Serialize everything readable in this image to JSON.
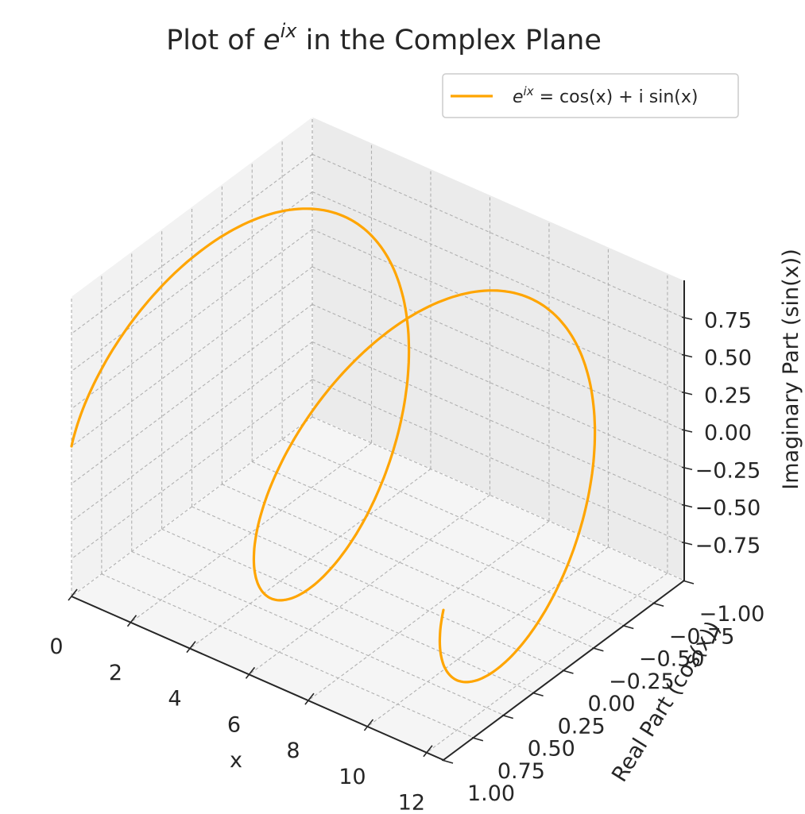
{
  "chart_data": {
    "type": "line",
    "projection": "3d",
    "title": "Plot of e^{ix} in the Complex Plane",
    "title_parts": {
      "prefix": "Plot of ",
      "base": "e",
      "sup": "ix",
      "suffix": " in the Complex Plane"
    },
    "xlabel": "x",
    "ylabel": "Real Part (cos(x))",
    "zlabel": "Imaginary Part (sin(x))",
    "xlim": [
      0,
      12.566
    ],
    "ylim": [
      -1.0,
      1.0
    ],
    "zlim": [
      -1.0,
      1.0
    ],
    "xticks": [
      0,
      2,
      4,
      6,
      8,
      10,
      12
    ],
    "xtick_labels": [
      "0",
      "2",
      "4",
      "6",
      "8",
      "10",
      "12"
    ],
    "yticks": [
      -1.0,
      -0.75,
      -0.5,
      -0.25,
      0.0,
      0.25,
      0.5,
      0.75,
      1.0
    ],
    "ytick_labels": [
      "−1.00",
      "−0.75",
      "−0.50",
      "−0.25",
      "0.00",
      "0.25",
      "0.50",
      "0.75",
      "1.00"
    ],
    "zticks": [
      -0.75,
      -0.5,
      -0.25,
      0.0,
      0.25,
      0.5,
      0.75
    ],
    "ztick_labels": [
      "−0.75",
      "−0.50",
      "−0.25",
      "0.00",
      "0.25",
      "0.50",
      "0.75"
    ],
    "grid": true,
    "legend": {
      "placement": "upper-right",
      "entry_parts": {
        "base": "e",
        "sup": "ix",
        "rest": " = cos(x) + i sin(x)"
      }
    },
    "series": [
      {
        "name": "e^{ix} = cos(x) + i sin(x)",
        "color": "#ffa500",
        "function": "x -> (x, cos(x), sin(x))",
        "x": [
          0.0,
          0.785,
          1.571,
          2.356,
          3.142,
          3.927,
          4.712,
          5.498,
          6.283,
          7.069,
          7.854,
          8.639,
          9.425,
          10.21,
          10.996,
          11.781,
          12.566
        ],
        "y": [
          1.0,
          0.707,
          0.0,
          -0.707,
          -1.0,
          -0.707,
          0.0,
          0.707,
          1.0,
          0.707,
          0.0,
          -0.707,
          -1.0,
          -0.707,
          0.0,
          0.707,
          1.0
        ],
        "z": [
          0.0,
          0.707,
          1.0,
          0.707,
          0.0,
          -0.707,
          -1.0,
          -0.707,
          0.0,
          0.707,
          1.0,
          0.707,
          0.0,
          -0.707,
          -1.0,
          -0.707,
          0.0
        ]
      }
    ]
  },
  "colors": {
    "line": "#ffa500",
    "pane_left": "#f2f2f2",
    "pane_back": "#ebebeb",
    "pane_floor": "#f5f5f5",
    "grid": "#b0b0b0",
    "axis": "#262626"
  }
}
